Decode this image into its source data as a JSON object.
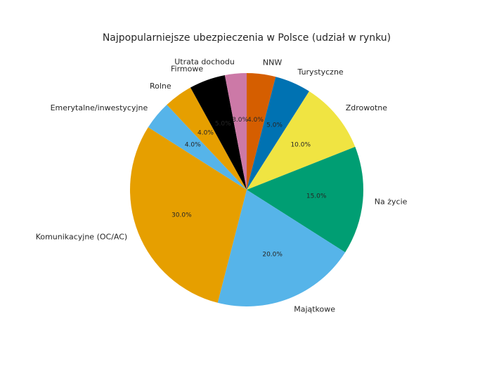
{
  "chart_data": {
    "type": "pie",
    "title": "Najpopularniejsze ubezpieczenia w Polsce (udział w rynku)",
    "start_angle_deg": 90,
    "direction": "clockwise",
    "slices": [
      {
        "label": "NNW",
        "value": 4.0,
        "display": "4.0%",
        "color": "#d55e00"
      },
      {
        "label": "Turystyczne",
        "value": 5.0,
        "display": "5.0%",
        "color": "#0072b2"
      },
      {
        "label": "Zdrowotne",
        "value": 10.0,
        "display": "10.0%",
        "color": "#f0e442"
      },
      {
        "label": "Na życie",
        "value": 15.0,
        "display": "15.0%",
        "color": "#009e73"
      },
      {
        "label": "Majątkowe",
        "value": 20.0,
        "display": "20.0%",
        "color": "#56b4e9"
      },
      {
        "label": "Komunikacyjne (OC/AC)",
        "value": 30.0,
        "display": "30.0%",
        "color": "#e69f00"
      },
      {
        "label": "Emerytalne/inwestycyjne",
        "value": 4.0,
        "display": "4.0%",
        "color": "#56b4e9"
      },
      {
        "label": "Rolne",
        "value": 4.0,
        "display": "4.0%",
        "color": "#e69f00"
      },
      {
        "label": "Firmowe",
        "value": 5.0,
        "display": "5.0%",
        "color": "#000000"
      },
      {
        "label": "Utrata dochodu",
        "value": 3.0,
        "display": "3.0%",
        "color": "#cc79a7"
      }
    ]
  }
}
